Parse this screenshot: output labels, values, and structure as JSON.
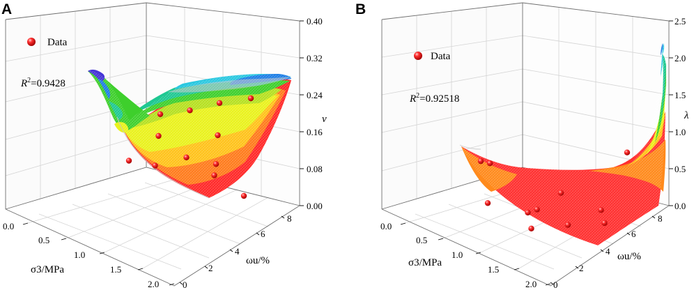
{
  "chart_data": [
    {
      "panel": "A",
      "type": "surface3d",
      "title": "",
      "xlabel": "σ3/MPa",
      "ylabel": "ωu/%",
      "zlabel": "v",
      "x_ticks": [
        "0.0",
        "0.5",
        "1.0",
        "1.5",
        "2.0"
      ],
      "y_ticks": [
        "0",
        "2",
        "4",
        "6",
        "8"
      ],
      "z_ticks": [
        "0.00",
        "0.08",
        "0.16",
        "0.24",
        "0.32",
        "0.40"
      ],
      "xlim": [
        0,
        2
      ],
      "ylim": [
        0,
        8
      ],
      "zlim": [
        0,
        0.4
      ],
      "legend": "Data",
      "r2_label": "R",
      "r2_value": "=0.9428",
      "points": [
        {
          "x": 0.0,
          "y": 8.0,
          "z": 0.27
        },
        {
          "x": 0.5,
          "y": 6.0,
          "z": 0.26
        },
        {
          "x": 0.5,
          "y": 4.0,
          "z": 0.23
        },
        {
          "x": 0.5,
          "y": 2.0,
          "z": 0.21
        },
        {
          "x": 1.0,
          "y": 6.0,
          "z": 0.18
        },
        {
          "x": 1.0,
          "y": 2.0,
          "z": 0.16
        },
        {
          "x": 1.5,
          "y": 4.0,
          "z": 0.12
        },
        {
          "x": 1.5,
          "y": 6.0,
          "z": 0.11
        },
        {
          "x": 2.0,
          "y": 6.0,
          "z": 0.09
        },
        {
          "x": 2.0,
          "y": 2.0,
          "z": 0.1
        },
        {
          "x": 1.0,
          "y": 0.0,
          "z": 0.08
        },
        {
          "x": 2.0,
          "y": 8.0,
          "z": 0.04
        }
      ]
    },
    {
      "panel": "B",
      "type": "surface3d",
      "title": "",
      "xlabel": "σ3/MPa",
      "ylabel": "ωu/%",
      "zlabel": "λ",
      "x_ticks": [
        "0.0",
        "0.5",
        "1.0",
        "1.5",
        "2.0"
      ],
      "y_ticks": [
        "0",
        "2",
        "4",
        "6",
        "8"
      ],
      "z_ticks": [
        "0.0",
        "0.5",
        "1.0",
        "1.5",
        "2.0",
        "2.5"
      ],
      "xlim": [
        0,
        2
      ],
      "ylim": [
        0,
        8
      ],
      "zlim": [
        0,
        2.5
      ],
      "legend": "Data",
      "r2_label": "R",
      "r2_value": "=0.92518",
      "points": [
        {
          "x": 0.0,
          "y": 0.0,
          "z": 0.32
        },
        {
          "x": 0.0,
          "y": 0.5,
          "z": 0.28
        },
        {
          "x": 0.0,
          "y": 8.0,
          "z": 0.42
        },
        {
          "x": 1.0,
          "y": 4.0,
          "z": 0.2
        },
        {
          "x": 1.5,
          "y": 2.0,
          "z": 0.1
        },
        {
          "x": 1.5,
          "y": 2.5,
          "z": 0.15
        },
        {
          "x": 1.5,
          "y": 6.0,
          "z": 0.12
        },
        {
          "x": 2.0,
          "y": 4.0,
          "z": 0.1
        },
        {
          "x": 2.0,
          "y": 6.0,
          "z": 0.12
        },
        {
          "x": 2.0,
          "y": 2.0,
          "z": 0.05
        },
        {
          "x": 1.0,
          "y": 0.0,
          "z": 0.05
        }
      ]
    }
  ]
}
